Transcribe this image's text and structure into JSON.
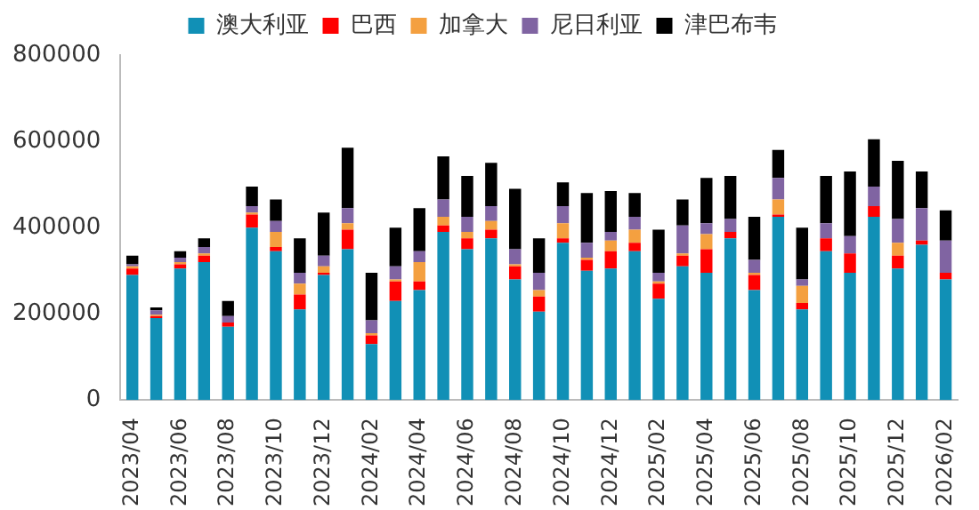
{
  "chart_data": {
    "type": "bar",
    "stacked": true,
    "legend": "top",
    "grid": false,
    "categories": [
      "2023/04",
      null,
      "2023/06",
      null,
      "2023/08",
      null,
      "2023/10",
      null,
      "2023/12",
      null,
      "2024/02",
      null,
      "2024/04",
      null,
      "2024/06",
      null,
      "2024/08",
      null,
      "2024/10",
      null,
      "2024/12",
      null,
      "2025/02",
      null,
      "2025/04",
      null,
      "2025/06",
      null,
      "2025/08",
      null,
      "2025/10",
      null,
      "2025/12",
      null,
      "2026/02"
    ],
    "ylim": [
      0,
      800000
    ],
    "yticks": [
      0,
      200000,
      400000,
      600000,
      800000
    ],
    "series": [
      {
        "name": "澳大利亚",
        "color": "#1190b6",
        "values": [
          290000,
          190000,
          305000,
          320000,
          170000,
          400000,
          345000,
          210000,
          290000,
          350000,
          130000,
          230000,
          255000,
          390000,
          350000,
          375000,
          280000,
          205000,
          365000,
          300000,
          305000,
          345000,
          235000,
          310000,
          295000,
          375000,
          255000,
          425000,
          210000,
          345000,
          295000,
          425000,
          305000,
          360000,
          280000
        ]
      },
      {
        "name": "巴西",
        "color": "#ff0000",
        "values": [
          15000,
          5000,
          10000,
          15000,
          10000,
          30000,
          10000,
          35000,
          5000,
          45000,
          20000,
          45000,
          20000,
          15000,
          25000,
          20000,
          30000,
          35000,
          10000,
          25000,
          40000,
          20000,
          35000,
          25000,
          55000,
          15000,
          35000,
          5000,
          15000,
          30000,
          45000,
          25000,
          30000,
          10000,
          15000
        ]
      },
      {
        "name": "加拿大",
        "color": "#f4a040",
        "values": [
          5000,
          3000,
          5000,
          5000,
          0,
          5000,
          35000,
          25000,
          15000,
          15000,
          5000,
          5000,
          45000,
          20000,
          15000,
          20000,
          5000,
          15000,
          35000,
          5000,
          25000,
          30000,
          5000,
          5000,
          35000,
          0,
          5000,
          35000,
          40000,
          0,
          0,
          0,
          30000,
          0,
          0
        ]
      },
      {
        "name": "尼日利亚",
        "color": "#8064a2",
        "values": [
          5000,
          10000,
          10000,
          15000,
          15000,
          15000,
          25000,
          25000,
          25000,
          35000,
          30000,
          30000,
          25000,
          40000,
          35000,
          35000,
          35000,
          40000,
          40000,
          35000,
          20000,
          30000,
          20000,
          65000,
          25000,
          30000,
          30000,
          50000,
          15000,
          35000,
          40000,
          45000,
          55000,
          75000,
          75000
        ]
      },
      {
        "name": "津巴布韦",
        "color": "#000000",
        "values": [
          20000,
          7000,
          15000,
          20000,
          35000,
          45000,
          50000,
          80000,
          100000,
          140000,
          110000,
          90000,
          100000,
          100000,
          95000,
          100000,
          140000,
          80000,
          55000,
          115000,
          95000,
          55000,
          100000,
          60000,
          105000,
          100000,
          100000,
          65000,
          120000,
          110000,
          150000,
          110000,
          135000,
          85000,
          70000
        ]
      }
    ]
  }
}
